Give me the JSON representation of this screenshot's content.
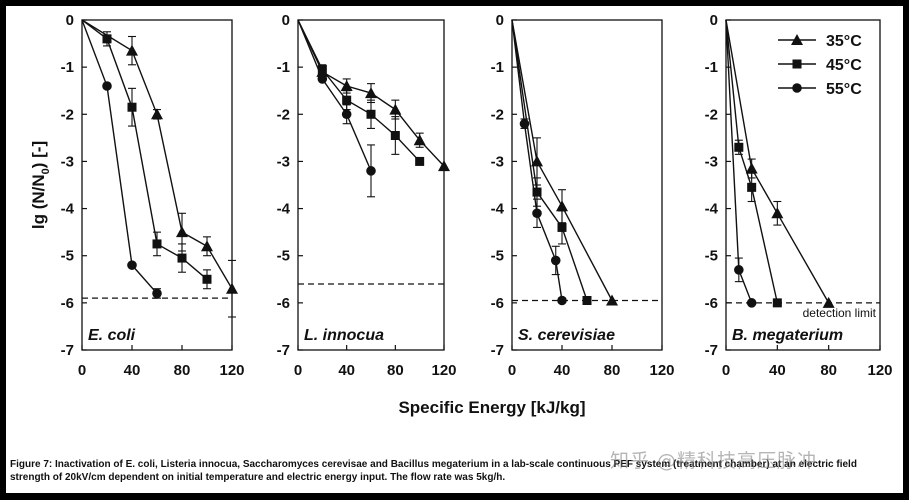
{
  "figure": {
    "caption": "Figure 7: Inactivation of E. coli, Listeria innocua, Saccharomyces cerevisae and Bacillus megaterium in a lab-scale continuous PEF system (treatment chamber) at an electric field strength of 20kV/cm dependent on initial temperature and electric energy input. The flow rate was 5kg/h.",
    "watermark": "知乎 @精科技高压脉冲",
    "background_color": "#ffffff",
    "line_color": "#111111"
  },
  "chart_data": {
    "type": "line",
    "ylabel": "lg (N/N0) [-]",
    "xlabel": "Specific Energy [kJ/kg]",
    "ylim": [
      -7,
      0
    ],
    "yticks": [
      0,
      -1,
      -2,
      -3,
      -4,
      -5,
      -6,
      -7
    ],
    "legend": {
      "placement": "top-right",
      "entries": [
        {
          "name": "35°C",
          "marker": "triangle"
        },
        {
          "name": "45°C",
          "marker": "square"
        },
        {
          "name": "55°C",
          "marker": "circle"
        }
      ]
    },
    "panels": [
      {
        "label": "E. coli",
        "xlim": [
          0,
          120
        ],
        "xticks": [
          0,
          40,
          80,
          120
        ],
        "detection_limit": -5.9,
        "series": [
          {
            "name": "35°C",
            "marker": "triangle",
            "x": [
              0,
              40,
              60,
              80,
              100,
              120
            ],
            "y": [
              0,
              -0.65,
              -2.0,
              -4.5,
              -4.8,
              -5.7
            ],
            "err": [
              0,
              0.3,
              0.1,
              0.4,
              0.2,
              0.6
            ]
          },
          {
            "name": "45°C",
            "marker": "square",
            "x": [
              0,
              20,
              40,
              60,
              80,
              100
            ],
            "y": [
              0,
              -0.4,
              -1.85,
              -4.75,
              -5.05,
              -5.5
            ],
            "err": [
              0,
              0.15,
              0.4,
              0.25,
              0.3,
              0.2
            ]
          },
          {
            "name": "55°C",
            "marker": "circle",
            "x": [
              0,
              20,
              40,
              60
            ],
            "y": [
              0,
              -1.4,
              -5.2,
              -5.8
            ],
            "err": [
              0,
              0,
              0,
              0.1
            ]
          }
        ]
      },
      {
        "label": "L. innocua",
        "xlim": [
          0,
          120
        ],
        "xticks": [
          0,
          40,
          80,
          120
        ],
        "detection_limit": -5.6,
        "series": [
          {
            "name": "35°C",
            "marker": "triangle",
            "x": [
              0,
              20,
              40,
              60,
              80,
              100,
              120
            ],
            "y": [
              0,
              -1.1,
              -1.4,
              -1.55,
              -1.9,
              -2.55,
              -3.1
            ],
            "err": [
              0,
              0.1,
              0.15,
              0.2,
              0.2,
              0.15,
              0
            ]
          },
          {
            "name": "45°C",
            "marker": "square",
            "x": [
              0,
              20,
              40,
              60,
              80,
              100
            ],
            "y": [
              0,
              -1.05,
              -1.7,
              -2.0,
              -2.45,
              -3.0
            ],
            "err": [
              0,
              0.1,
              0.2,
              0.3,
              0.4,
              0
            ]
          },
          {
            "name": "55°C",
            "marker": "circle",
            "x": [
              0,
              20,
              40,
              60
            ],
            "y": [
              0,
              -1.25,
              -2.0,
              -3.2
            ],
            "err": [
              0,
              0,
              0.2,
              0.55
            ]
          }
        ]
      },
      {
        "label": "S. cerevisiae",
        "xlim": [
          0,
          120
        ],
        "xticks": [
          0,
          40,
          80,
          120
        ],
        "detection_limit": -5.95,
        "series": [
          {
            "name": "35°C",
            "marker": "triangle",
            "x": [
              0,
              20,
              40,
              80
            ],
            "y": [
              0,
              -3.0,
              -3.95,
              -5.95
            ],
            "err": [
              0,
              0.5,
              0.35,
              0
            ]
          },
          {
            "name": "45°C",
            "marker": "square",
            "x": [
              0,
              20,
              40,
              60
            ],
            "y": [
              0,
              -3.65,
              -4.4,
              -5.95
            ],
            "err": [
              0,
              0.3,
              0.35,
              0
            ]
          },
          {
            "name": "55°C",
            "marker": "circle",
            "x": [
              0,
              10,
              20,
              35,
              40
            ],
            "y": [
              0,
              -2.2,
              -4.1,
              -5.1,
              -5.95
            ],
            "err": [
              0,
              0.1,
              0.3,
              0.3,
              0
            ]
          }
        ]
      },
      {
        "label": "B. megaterium",
        "xlim": [
          0,
          120
        ],
        "xticks": [
          0,
          40,
          80,
          120
        ],
        "detection_limit": -6.0,
        "detection_label": "detection limit",
        "series": [
          {
            "name": "35°C",
            "marker": "triangle",
            "x": [
              0,
              20,
              40,
              80
            ],
            "y": [
              0,
              -3.15,
              -4.1,
              -6.0
            ],
            "err": [
              0,
              0.2,
              0.25,
              0
            ]
          },
          {
            "name": "45°C",
            "marker": "square",
            "x": [
              0,
              10,
              20,
              40
            ],
            "y": [
              0,
              -2.7,
              -3.55,
              -6.0
            ],
            "err": [
              0,
              0.15,
              0.3,
              0
            ]
          },
          {
            "name": "55°C",
            "marker": "circle",
            "x": [
              0,
              10,
              20
            ],
            "y": [
              0,
              -5.3,
              -6.0
            ],
            "err": [
              0,
              0.25,
              0
            ]
          }
        ]
      }
    ]
  }
}
